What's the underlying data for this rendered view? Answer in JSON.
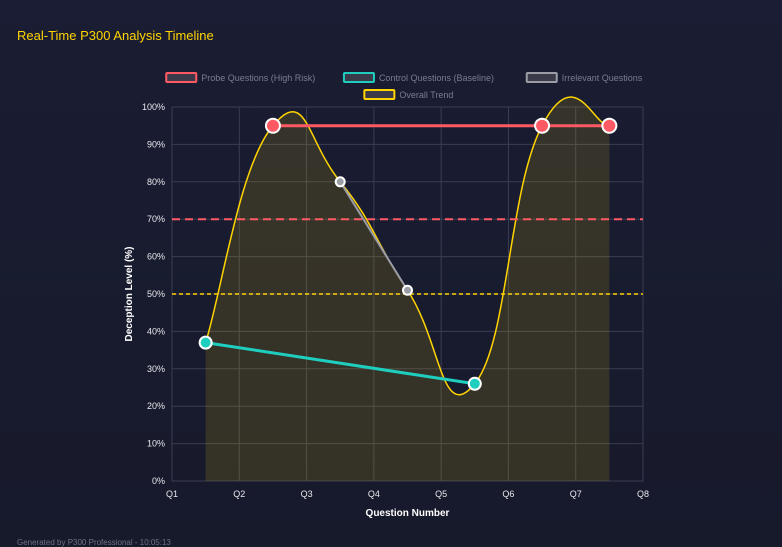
{
  "title": "Real-Time P300 Analysis Timeline",
  "footer": "Generated by P300 Professional - 10:05:13",
  "chart_data": {
    "type": "line",
    "xlabel": "Question Number",
    "ylabel": "Deception Level (%)",
    "ylim": [
      0,
      100
    ],
    "x_ticks": [
      "Q1",
      "Q2",
      "Q3",
      "Q4",
      "Q5",
      "Q6",
      "Q7",
      "Q8"
    ],
    "y_ticks": [
      "0%",
      "10%",
      "20%",
      "30%",
      "40%",
      "50%",
      "60%",
      "70%",
      "80%",
      "90%",
      "100%"
    ],
    "grid": true,
    "legend_placement": "top",
    "thresholds": [
      {
        "value": 70,
        "color": "#ff5a64",
        "style": "dashed"
      },
      {
        "value": 50,
        "color": "#ffd400",
        "style": "dashed"
      }
    ],
    "series": [
      {
        "name": "Probe Questions (High Risk)",
        "color": "#ff5a64",
        "points": [
          {
            "q": 2,
            "y": 95
          },
          {
            "q": 6,
            "y": 95
          },
          {
            "q": 7,
            "y": 95
          }
        ]
      },
      {
        "name": "Control Questions (Baseline)",
        "color": "#1ecfc0",
        "points": [
          {
            "q": 1,
            "y": 37
          },
          {
            "q": 5,
            "y": 26
          }
        ]
      },
      {
        "name": "Irrelevant Questions",
        "color": "#9a9ca6",
        "points": [
          {
            "q": 3,
            "y": 80
          },
          {
            "q": 4,
            "y": 51
          }
        ]
      },
      {
        "name": "Overall Trend",
        "color": "#ffd400",
        "fill": true,
        "points": [
          {
            "q": 1,
            "y": 37
          },
          {
            "q": 2,
            "y": 95
          },
          {
            "q": 3,
            "y": 80
          },
          {
            "q": 4,
            "y": 51
          },
          {
            "q": 5,
            "y": 26
          },
          {
            "q": 6,
            "y": 95
          },
          {
            "q": 7,
            "y": 95
          }
        ]
      }
    ]
  }
}
